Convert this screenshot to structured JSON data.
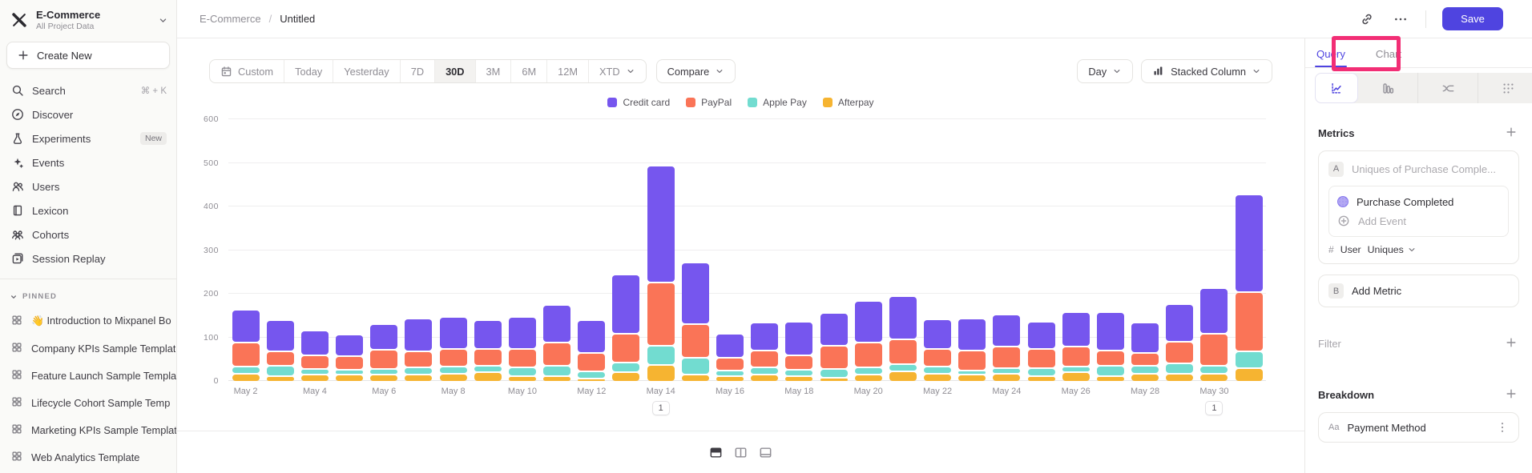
{
  "header": {
    "breadcrumb": {
      "project": "E-Commerce",
      "separator": "/",
      "page": "Untitled"
    },
    "actions": {
      "link_icon": "link-icon",
      "more_icon": "more-icon",
      "save_label": "Save"
    }
  },
  "sidebar": {
    "project": {
      "name": "E-Commerce",
      "subtitle": "All Project Data"
    },
    "create_new_label": "Create New",
    "nav": [
      {
        "id": "search",
        "icon": "search",
        "label": "Search",
        "shortcut": "⌘ + K"
      },
      {
        "id": "discover",
        "icon": "compass",
        "label": "Discover"
      },
      {
        "id": "experiments",
        "icon": "flask",
        "label": "Experiments",
        "badge": "New"
      },
      {
        "id": "events",
        "icon": "spark",
        "label": "Events"
      },
      {
        "id": "users",
        "icon": "users",
        "label": "Users"
      },
      {
        "id": "lexicon",
        "icon": "book",
        "label": "Lexicon"
      },
      {
        "id": "cohorts",
        "icon": "cohorts",
        "label": "Cohorts"
      },
      {
        "id": "session-replay",
        "icon": "replay",
        "label": "Session Replay"
      }
    ],
    "pinned_header": "PINNED",
    "pinned": [
      {
        "id": "intro-board",
        "label": "👋 Introduction to Mixpanel Bo"
      },
      {
        "id": "company-kpis",
        "label": "Company KPIs Sample Templat"
      },
      {
        "id": "feature-launch",
        "label": "Feature Launch Sample Templa"
      },
      {
        "id": "lifecycle-cohort",
        "label": "Lifecycle Cohort Sample Temp"
      },
      {
        "id": "marketing-kpis",
        "label": "Marketing KPIs Sample Templat"
      },
      {
        "id": "web-analytics",
        "label": "Web Analytics Template"
      }
    ]
  },
  "toolbar": {
    "ranges": [
      "Custom",
      "Today",
      "Yesterday",
      "7D",
      "30D",
      "3M",
      "6M",
      "12M",
      "XTD"
    ],
    "active_range": "30D",
    "compare_label": "Compare",
    "granularity_label": "Day",
    "chart_type_label": "Stacked Column"
  },
  "footer": {
    "layout_icons": [
      "split-horizontal",
      "split-vertical",
      "panel-bottom"
    ]
  },
  "right_panel": {
    "tabs": {
      "query": "Query",
      "chart": "Chart",
      "active": "Query"
    },
    "view_icons": [
      "insights",
      "funnel",
      "flow",
      "retention"
    ],
    "metrics_title": "Metrics",
    "metric_a": {
      "badge": "A",
      "placeholder": "Uniques of Purchase Comple...",
      "event_label": "Purchase Completed",
      "add_event_label": "Add Event",
      "count_symbol": "#",
      "entity_label": "User",
      "aggregation_label": "Uniques"
    },
    "metric_b": {
      "badge": "B",
      "label": "Add Metric"
    },
    "filter_label": "Filter",
    "breakdown_label": "Breakdown",
    "breakdown_item": {
      "type_label": "Aa",
      "label": "Payment Method"
    }
  },
  "annotation_overlay": {
    "type": "highlight-box",
    "target": "chart-tab",
    "color": "#F22E75"
  },
  "chart_data": {
    "type": "bar",
    "stacked": true,
    "title": "",
    "xlabel": "",
    "ylabel": "",
    "granularity": "Day",
    "x": [
      "May 2",
      "May 3",
      "May 4",
      "May 5",
      "May 6",
      "May 7",
      "May 8",
      "May 9",
      "May 10",
      "May 11",
      "May 12",
      "May 13",
      "May 14",
      "May 15",
      "May 16",
      "May 17",
      "May 18",
      "May 19",
      "May 20",
      "May 21",
      "May 22",
      "May 23",
      "May 24",
      "May 25",
      "May 26",
      "May 27",
      "May 28",
      "May 29",
      "May 30",
      "May 31"
    ],
    "x_tick_labels": [
      "May 2",
      "May 4",
      "May 6",
      "May 8",
      "May 10",
      "May 12",
      "May 14",
      "May 16",
      "May 18",
      "May 20",
      "May 22",
      "May 24",
      "May 26",
      "May 28",
      "May 30"
    ],
    "series": [
      {
        "name": "Afterpay",
        "color": "#F6B431",
        "values": [
          15,
          9,
          13,
          12,
          13,
          13,
          15,
          18,
          9,
          10,
          4,
          18,
          34,
          12,
          10,
          12,
          9,
          6,
          12,
          20,
          15,
          13,
          14,
          10,
          18,
          9,
          15,
          15,
          15,
          28
        ]
      },
      {
        "name": "Apple Pay",
        "color": "#72DCD0",
        "values": [
          12,
          21,
          10,
          8,
          10,
          12,
          13,
          11,
          17,
          20,
          13,
          19,
          41,
          34,
          10,
          12,
          11,
          17,
          12,
          12,
          12,
          5,
          10,
          14,
          9,
          20,
          14,
          20,
          15,
          35
        ]
      },
      {
        "name": "PayPal",
        "color": "#FA7457",
        "values": [
          52,
          30,
          27,
          28,
          40,
          33,
          36,
          35,
          38,
          49,
          39,
          62,
          141,
          73,
          25,
          35,
          30,
          49,
          54,
          53,
          36,
          43,
          45,
          40,
          42,
          31,
          25,
          45,
          70,
          133
        ]
      },
      {
        "name": "Credit card",
        "color": "#7656EE",
        "values": [
          71,
          67,
          53,
          45,
          55,
          71,
          69,
          63,
          69,
          82,
          71,
          133,
          264,
          137,
          51,
          61,
          73,
          72,
          91,
          96,
          65,
          70,
          70,
          58,
          76,
          85,
          66,
          82,
          100,
          221
        ]
      }
    ],
    "legend": [
      "Credit card",
      "PayPal",
      "Apple Pay",
      "Afterpay"
    ],
    "legend_position": "top-center",
    "ylim": [
      0,
      600
    ],
    "yticks": [
      0,
      100,
      200,
      300,
      400,
      500,
      600
    ],
    "grid": true,
    "annotations": [
      {
        "x": "May 14",
        "label": "1"
      },
      {
        "x": "May 30",
        "label": "1"
      }
    ]
  }
}
